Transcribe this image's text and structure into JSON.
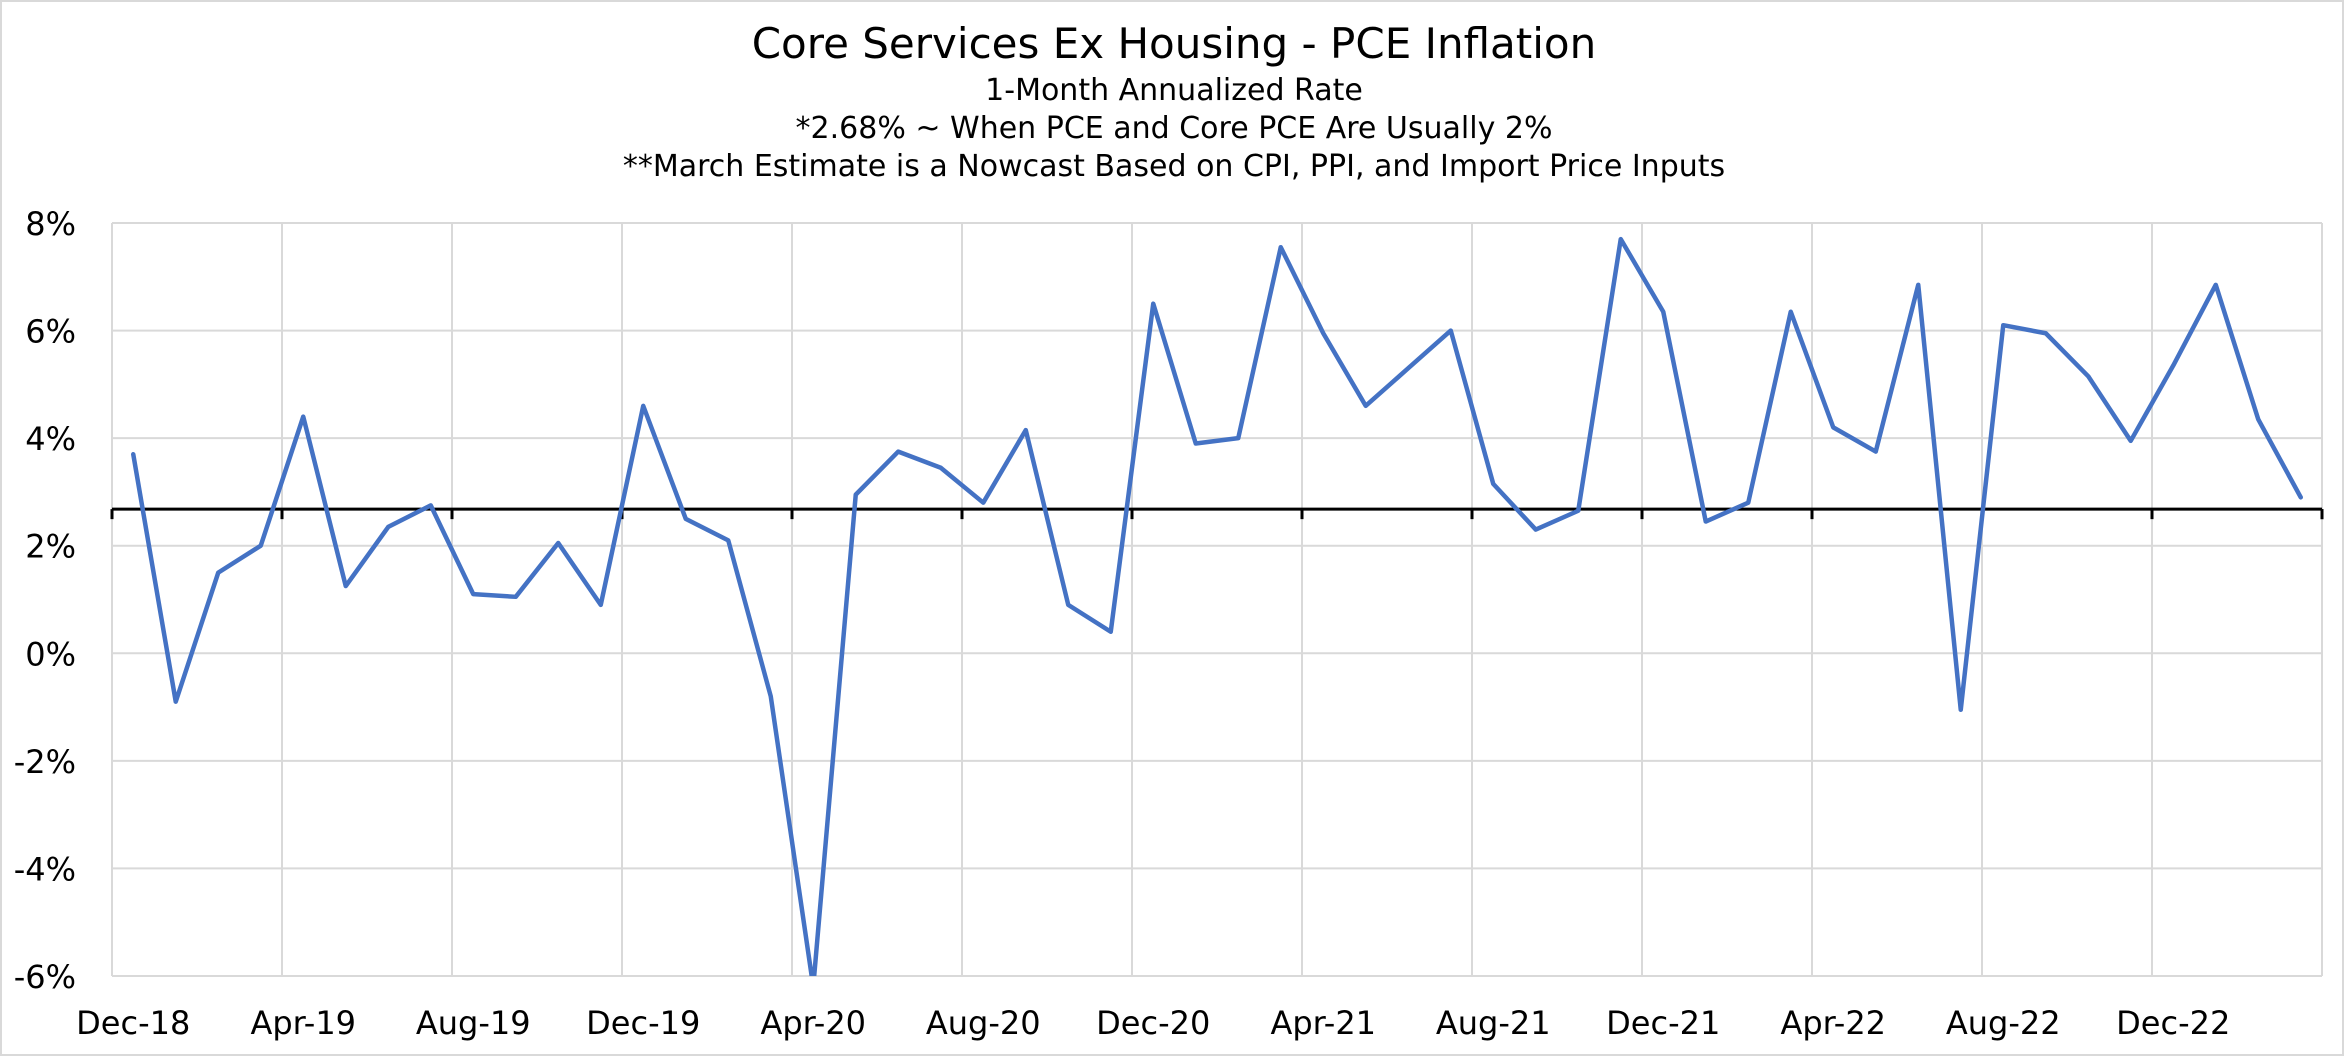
{
  "chart_data": {
    "type": "line",
    "title": "Core Services Ex Housing - PCE Inflation",
    "subtitle_lines": [
      "1-Month Annualized Rate",
      "*2.68% ~ When PCE and Core PCE Are Usually 2%",
      "**March Estimate is a Nowcast Based on CPI, PPI, and Import Price Inputs"
    ],
    "xlabel": "",
    "ylabel": "",
    "ylim": [
      -6,
      8
    ],
    "yticks": [
      8,
      6,
      4,
      2,
      0,
      -2,
      -4,
      -6
    ],
    "ytick_labels": [
      "8%",
      "6%",
      "4%",
      "2%",
      "0%",
      "-2%",
      "-4%",
      "-6%"
    ],
    "reference_line": {
      "value": 2.68
    },
    "x_start": "Dec-18",
    "x_tick_every": 4,
    "xtick_labels": [
      "Dec-18",
      "Apr-19",
      "Aug-19",
      "Dec-19",
      "Apr-20",
      "Aug-20",
      "Dec-20",
      "Apr-21",
      "Aug-21",
      "Dec-21",
      "Apr-22",
      "Aug-22",
      "Dec-22"
    ],
    "grid": true,
    "colors": {
      "series": "#4472C4",
      "reference": "#000000",
      "grid": "#d9d9d9",
      "axis": "#d9d9d9"
    },
    "series": [
      {
        "name": "Core Services Ex Housing PCE (1-Month Annualized)",
        "values": [
          3.7,
          -0.9,
          1.5,
          2.0,
          4.4,
          1.25,
          2.35,
          2.75,
          1.1,
          1.05,
          2.05,
          0.9,
          4.6,
          2.5,
          2.1,
          -0.8,
          -6.2,
          2.95,
          3.75,
          3.45,
          2.8,
          4.15,
          0.9,
          0.4,
          6.5,
          3.9,
          4.0,
          7.55,
          5.95,
          4.6,
          5.3,
          6.0,
          3.15,
          2.3,
          2.65,
          7.7,
          6.35,
          2.45,
          2.8,
          6.35,
          4.2,
          3.75,
          6.85,
          -1.05,
          6.1,
          5.95,
          5.15,
          3.95,
          5.35,
          6.85,
          4.35,
          2.9
        ]
      }
    ]
  }
}
